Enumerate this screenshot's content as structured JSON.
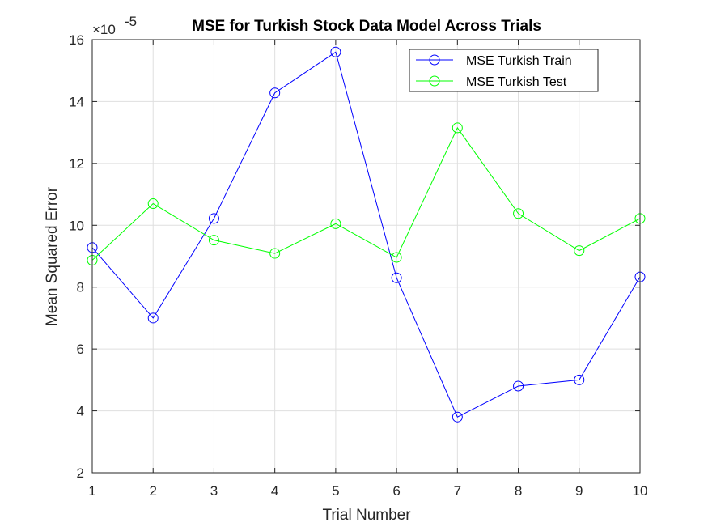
{
  "chart_data": {
    "type": "line",
    "title": "MSE for Turkish Stock Data Model Across Trials",
    "xlabel": "Trial Number",
    "ylabel": "Mean Squared Error",
    "y_exponent_label": "×10",
    "y_exponent_power": "-5",
    "x": [
      1,
      2,
      3,
      4,
      5,
      6,
      7,
      8,
      9,
      10
    ],
    "xlim": [
      1,
      10
    ],
    "ylim": [
      2,
      16
    ],
    "x_ticks": [
      1,
      2,
      3,
      4,
      5,
      6,
      7,
      8,
      9,
      10
    ],
    "y_ticks": [
      2,
      4,
      6,
      8,
      10,
      12,
      14,
      16
    ],
    "grid": true,
    "legend_position": "top-right",
    "series": [
      {
        "name": "MSE Turkish Train",
        "color": "#0000ff",
        "marker": "circle",
        "values": [
          9.28,
          7.0,
          10.22,
          14.28,
          15.6,
          8.3,
          3.8,
          4.8,
          5.0,
          8.33
        ]
      },
      {
        "name": "MSE Turkish Test",
        "color": "#00ff00",
        "marker": "circle",
        "values": [
          8.87,
          10.7,
          9.52,
          9.09,
          10.05,
          8.96,
          13.15,
          10.38,
          9.18,
          10.22
        ]
      }
    ]
  }
}
